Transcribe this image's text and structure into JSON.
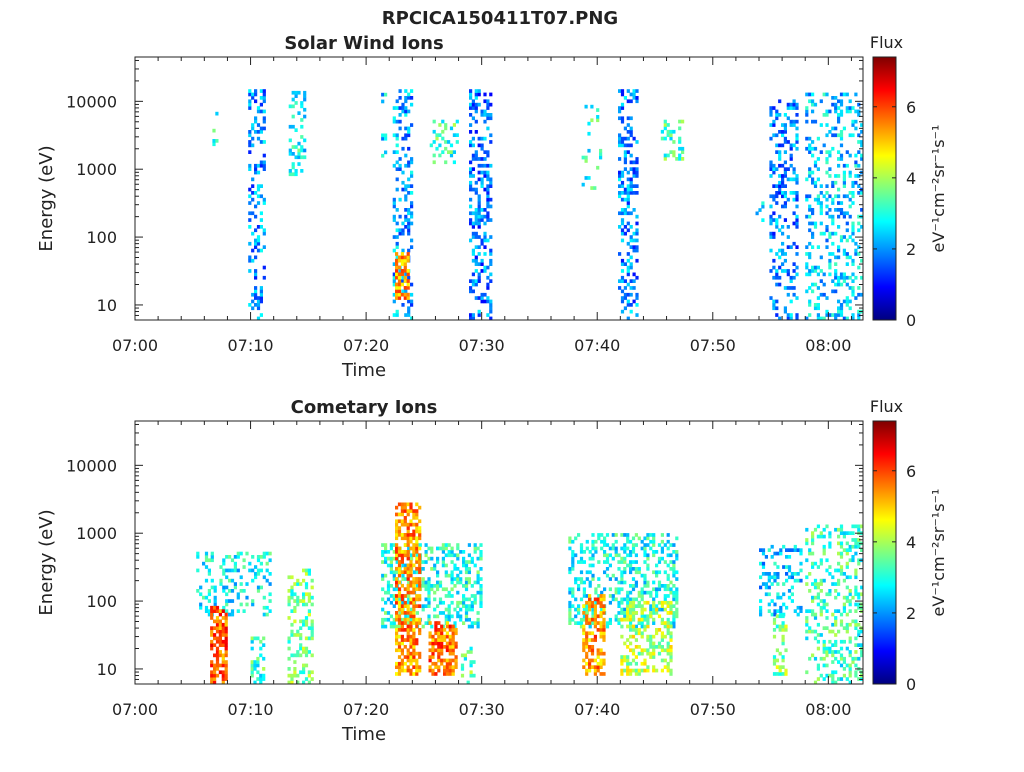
{
  "figure": {
    "title": "RPCICA150411T07.PNG"
  },
  "chart_data": [
    {
      "type": "heatmap",
      "title": "Solar Wind Ions",
      "xlabel": "Time",
      "ylabel": "Energy (eV)",
      "xticks": [
        "07:00",
        "07:10",
        "07:20",
        "07:30",
        "07:40",
        "07:50",
        "08:00"
      ],
      "xlim_minutes": [
        0,
        63
      ],
      "yscale": "log",
      "ylim": [
        6,
        45000
      ],
      "yticks": [
        10,
        100,
        1000,
        10000
      ],
      "ytick_labels": [
        "10",
        "100",
        "1000",
        "10000"
      ],
      "colorbar": {
        "title": "Flux",
        "unit": "eV⁻¹cm⁻²sr⁻¹s⁻¹",
        "min": 0,
        "max": 7.4,
        "ticks": [
          "0",
          "2",
          "4",
          "6"
        ]
      },
      "bursts": [
        {
          "t0": 6.7,
          "t1": 7.2,
          "emin": 700,
          "emax": 10000,
          "level": 3.1,
          "density": 0.12
        },
        {
          "t0": 9.8,
          "t1": 11.3,
          "emin": 6,
          "emax": 15000,
          "level": 2.0,
          "density": 0.28
        },
        {
          "t0": 13.3,
          "t1": 14.8,
          "emin": 800,
          "emax": 13000,
          "level": 2.8,
          "density": 0.25
        },
        {
          "t0": 21.3,
          "t1": 21.7,
          "emin": 1500,
          "emax": 13000,
          "level": 2.6,
          "density": 0.15
        },
        {
          "t0": 22.3,
          "t1": 24.0,
          "emin": 6,
          "emax": 14000,
          "level": 2.1,
          "density": 0.34
        },
        {
          "t0": 22.5,
          "t1": 23.6,
          "emin": 12,
          "emax": 60,
          "level": 5.4,
          "density": 0.65
        },
        {
          "t0": 25.5,
          "t1": 27.9,
          "emin": 1200,
          "emax": 5000,
          "level": 3.2,
          "density": 0.3
        },
        {
          "t0": 28.9,
          "t1": 30.8,
          "emin": 6,
          "emax": 14000,
          "level": 1.8,
          "density": 0.38
        },
        {
          "t0": 38.4,
          "t1": 40.2,
          "emin": 500,
          "emax": 8000,
          "level": 3.1,
          "density": 0.1
        },
        {
          "t0": 41.8,
          "t1": 43.5,
          "emin": 6,
          "emax": 14000,
          "level": 1.9,
          "density": 0.36
        },
        {
          "t0": 45.5,
          "t1": 47.5,
          "emin": 1200,
          "emax": 5000,
          "level": 3.3,
          "density": 0.25
        },
        {
          "t0": 53.7,
          "t1": 54.4,
          "emin": 150,
          "emax": 300,
          "level": 2.5,
          "density": 0.25
        },
        {
          "t0": 54.9,
          "t1": 57.4,
          "emin": 6,
          "emax": 10000,
          "level": 1.9,
          "density": 0.32
        },
        {
          "t0": 58.0,
          "t1": 62.8,
          "emin": 6,
          "emax": 12000,
          "level": 2.4,
          "density": 0.28
        }
      ]
    },
    {
      "type": "heatmap",
      "title": "Cometary Ions",
      "xlabel": "Time",
      "ylabel": "Energy (eV)",
      "xticks": [
        "07:00",
        "07:10",
        "07:20",
        "07:30",
        "07:40",
        "07:50",
        "08:00"
      ],
      "xlim_minutes": [
        0,
        63
      ],
      "yscale": "log",
      "ylim": [
        6,
        45000
      ],
      "yticks": [
        10,
        100,
        1000,
        10000
      ],
      "ytick_labels": [
        "10",
        "100",
        "1000",
        "10000"
      ],
      "colorbar": {
        "title": "Flux",
        "unit": "eV⁻¹cm⁻²sr⁻¹s⁻¹",
        "min": 0,
        "max": 7.4,
        "ticks": [
          "0",
          "2",
          "4",
          "6"
        ]
      },
      "bursts": [
        {
          "t0": 5.3,
          "t1": 11.8,
          "emin": 60,
          "emax": 500,
          "level": 2.8,
          "density": 0.3
        },
        {
          "t0": 6.5,
          "t1": 7.9,
          "emin": 6,
          "emax": 80,
          "level": 5.8,
          "density": 0.7
        },
        {
          "t0": 10.0,
          "t1": 11.2,
          "emin": 6,
          "emax": 30,
          "level": 3.2,
          "density": 0.4
        },
        {
          "t0": 13.2,
          "t1": 15.3,
          "emin": 6,
          "emax": 300,
          "level": 3.6,
          "density": 0.35
        },
        {
          "t0": 21.3,
          "t1": 29.9,
          "emin": 40,
          "emax": 700,
          "level": 3.0,
          "density": 0.42
        },
        {
          "t0": 22.5,
          "t1": 24.7,
          "emin": 8,
          "emax": 2800,
          "level": 5.4,
          "density": 0.6
        },
        {
          "t0": 25.4,
          "t1": 27.8,
          "emin": 8,
          "emax": 50,
          "level": 5.6,
          "density": 0.65
        },
        {
          "t0": 28.2,
          "t1": 29.3,
          "emin": 6,
          "emax": 20,
          "level": 3.4,
          "density": 0.4
        },
        {
          "t0": 37.5,
          "t1": 46.8,
          "emin": 40,
          "emax": 900,
          "level": 2.9,
          "density": 0.4
        },
        {
          "t0": 38.7,
          "t1": 40.6,
          "emin": 8,
          "emax": 120,
          "level": 5.4,
          "density": 0.62
        },
        {
          "t0": 42.0,
          "t1": 46.5,
          "emin": 8,
          "emax": 100,
          "level": 4.1,
          "density": 0.45
        },
        {
          "t0": 54.0,
          "t1": 57.6,
          "emin": 60,
          "emax": 600,
          "level": 2.4,
          "density": 0.3
        },
        {
          "t0": 55.2,
          "t1": 56.4,
          "emin": 8,
          "emax": 60,
          "level": 3.7,
          "density": 0.4
        },
        {
          "t0": 58.0,
          "t1": 62.8,
          "emin": 6,
          "emax": 1300,
          "level": 3.2,
          "density": 0.35
        }
      ]
    }
  ]
}
